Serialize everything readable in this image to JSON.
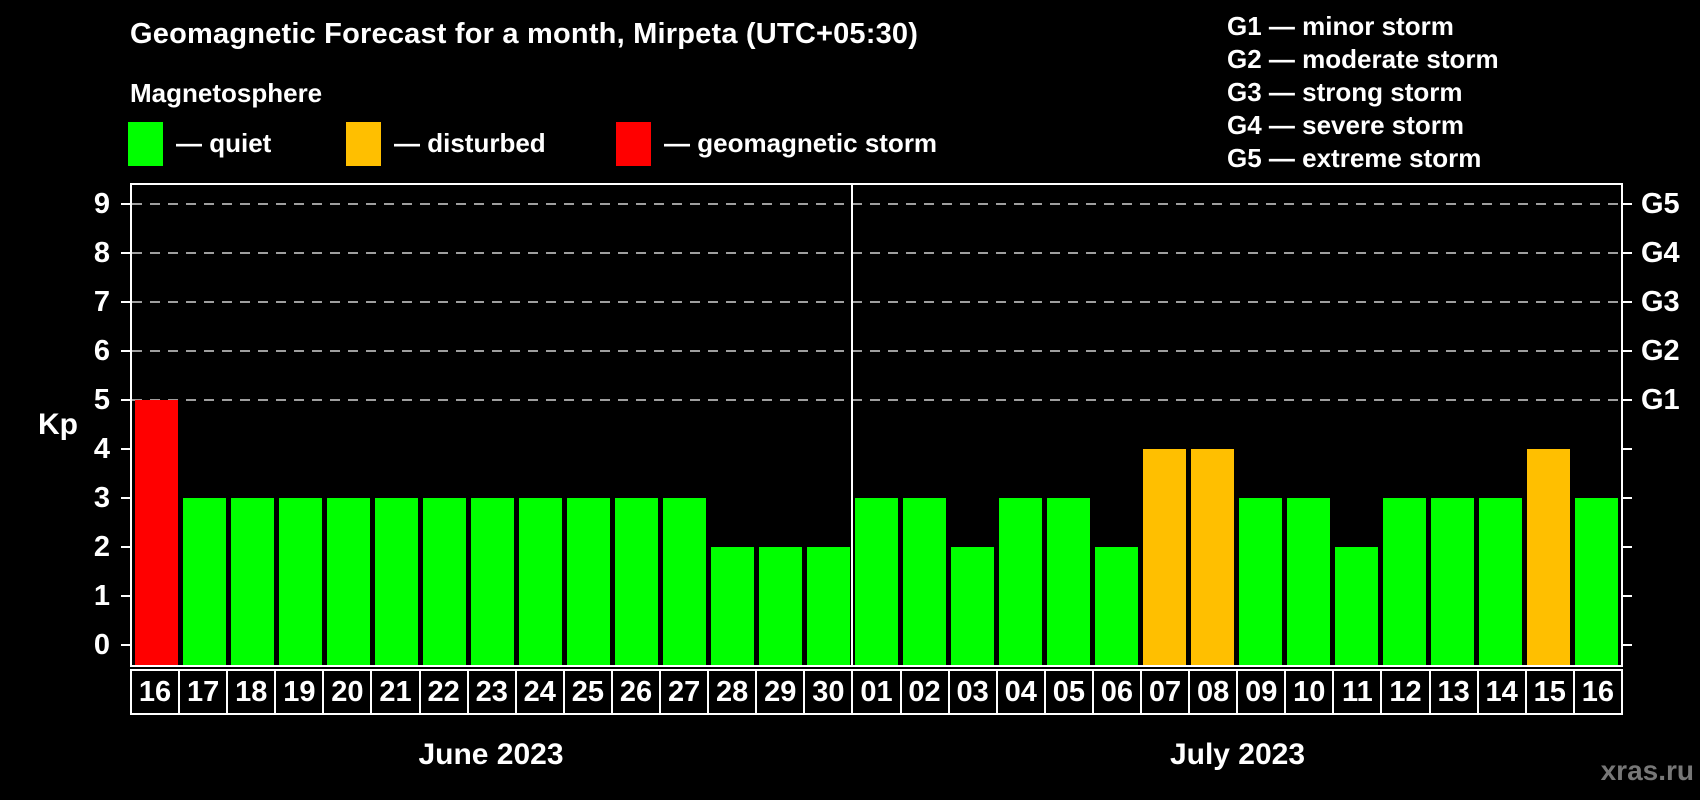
{
  "title": "Geomagnetic Forecast for a month, Mirpeta (UTC+05:30)",
  "legend": {
    "title": "Magnetosphere",
    "items": [
      {
        "label": "— quiet",
        "status": "quiet"
      },
      {
        "label": "— disturbed",
        "status": "disturbed"
      },
      {
        "label": "— geomagnetic storm",
        "status": "storm"
      }
    ]
  },
  "g_legend": {
    "lines": [
      "G1 — minor storm",
      "G2 — moderate storm",
      "G3 — strong storm",
      "G4 — severe storm",
      "G5 — extreme storm"
    ]
  },
  "axis": {
    "y_label": "Kp",
    "y_ticks": [
      "0",
      "1",
      "2",
      "3",
      "4",
      "5",
      "6",
      "7",
      "8",
      "9"
    ],
    "right_g_labels": {
      "5": "G1",
      "6": "G2",
      "7": "G3",
      "8": "G4",
      "9": "G5"
    }
  },
  "watermark": "xras.ru",
  "colors": {
    "quiet": "#00ff00",
    "disturbed": "#ffbf00",
    "storm": "#ff0000",
    "background": "#000000",
    "grid": "#9e9e9e",
    "text": "#ffffff",
    "watermark": "#777777"
  },
  "chart_data": {
    "type": "bar",
    "title": "Geomagnetic Forecast for a month, Mirpeta (UTC+05:30)",
    "ylabel": "Kp",
    "ylim": [
      0,
      9
    ],
    "gridlines_at": [
      5,
      6,
      7,
      8,
      9
    ],
    "grid": true,
    "legend_position": "top-left",
    "months": [
      {
        "name": "June 2023",
        "categories": [
          "16",
          "17",
          "18",
          "19",
          "20",
          "21",
          "22",
          "23",
          "24",
          "25",
          "26",
          "27",
          "28",
          "29",
          "30"
        ],
        "values": [
          5,
          3,
          3,
          3,
          3,
          3,
          3,
          3,
          3,
          3,
          3,
          3,
          2,
          2,
          2
        ],
        "statuses": [
          "storm",
          "quiet",
          "quiet",
          "quiet",
          "quiet",
          "quiet",
          "quiet",
          "quiet",
          "quiet",
          "quiet",
          "quiet",
          "quiet",
          "quiet",
          "quiet",
          "quiet"
        ]
      },
      {
        "name": "July 2023",
        "categories": [
          "01",
          "02",
          "03",
          "04",
          "05",
          "06",
          "07",
          "08",
          "09",
          "10",
          "11",
          "12",
          "13",
          "14",
          "15",
          "16"
        ],
        "values": [
          3,
          3,
          2,
          3,
          3,
          2,
          4,
          4,
          3,
          3,
          2,
          3,
          3,
          3,
          4,
          3
        ],
        "statuses": [
          "quiet",
          "quiet",
          "quiet",
          "quiet",
          "quiet",
          "quiet",
          "disturbed",
          "disturbed",
          "quiet",
          "quiet",
          "quiet",
          "quiet",
          "quiet",
          "quiet",
          "disturbed",
          "quiet"
        ]
      }
    ]
  }
}
